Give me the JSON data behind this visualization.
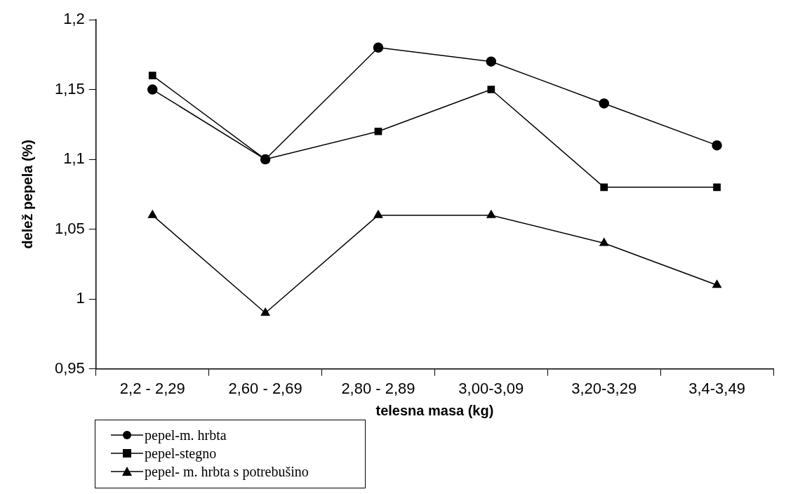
{
  "chart_data": {
    "type": "line",
    "xlabel": "telesna masa (kg)",
    "ylabel": "delež pepela (%)",
    "categories": [
      "2,2 - 2,29",
      "2,60 - 2,69",
      "2,80 - 2,89",
      "3,00-3,09",
      "3,20-3,29",
      "3,4-3,49"
    ],
    "series": [
      {
        "name": "pepel-m. hrbta",
        "color": "#000000",
        "marker": "circle",
        "values": [
          1.15,
          1.1,
          1.18,
          1.17,
          1.14,
          1.11
        ]
      },
      {
        "name": "pepel-stegno",
        "color": "#000000",
        "marker": "square",
        "values": [
          1.16,
          1.1,
          1.12,
          1.15,
          1.08,
          1.08
        ]
      },
      {
        "name": "pepel- m. hrbta s potrebušino",
        "color": "#000000",
        "marker": "triangle",
        "values": [
          1.06,
          0.99,
          1.06,
          1.06,
          1.04,
          1.01
        ]
      }
    ],
    "ylim": [
      0.95,
      1.2
    ],
    "yticks": [
      {
        "value": 0.95,
        "label": "0,95"
      },
      {
        "value": 1,
        "label": "1"
      },
      {
        "value": 1.05,
        "label": "1,05"
      },
      {
        "value": 1.1,
        "label": "1,1"
      },
      {
        "value": 1.15,
        "label": "1,15"
      },
      {
        "value": 1.2,
        "label": "1,2"
      }
    ],
    "grid": false,
    "legend": "bottom left",
    "line_style": "solid"
  }
}
